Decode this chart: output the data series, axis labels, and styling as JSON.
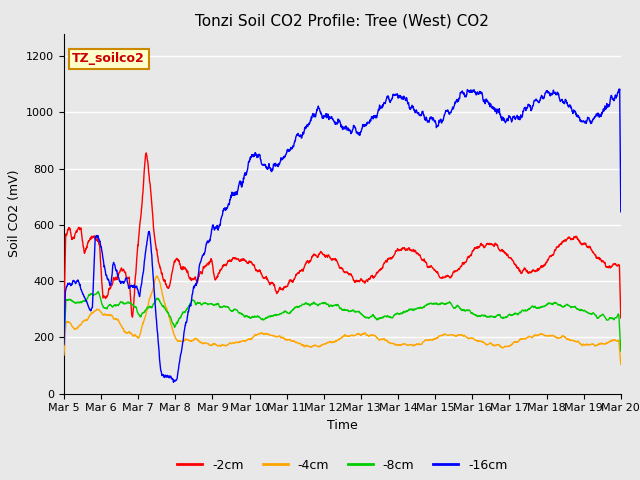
{
  "title": "Tonzi Soil CO2 Profile: Tree (West) CO2",
  "ylabel": "Soil CO2 (mV)",
  "xlabel": "Time",
  "ylim": [
    0,
    1280
  ],
  "yticks": [
    0,
    200,
    400,
    600,
    800,
    1000,
    1200
  ],
  "x_tick_labels": [
    "Mar 5",
    "Mar 6",
    "Mar 7",
    "Mar 8",
    "Mar 9",
    "Mar 10",
    "Mar 11",
    "Mar 12",
    "Mar 13",
    "Mar 14",
    "Mar 15",
    "Mar 16",
    "Mar 17",
    "Mar 18",
    "Mar 19",
    "Mar 20"
  ],
  "colors": {
    "red": "#FF0000",
    "orange": "#FFA500",
    "green": "#00CC00",
    "blue": "#0000FF"
  },
  "legend_labels": [
    "-2cm",
    "-4cm",
    "-8cm",
    "-16cm"
  ],
  "legend_colors": [
    "#FF0000",
    "#FFA500",
    "#00CC00",
    "#0000FF"
  ],
  "annotation_text": "TZ_soilco2",
  "annotation_color": "#CC0000",
  "annotation_bg": "#FFFFCC",
  "annotation_border": "#CC8800",
  "bg_color": "#E8E8E8",
  "grid_color": "#FFFFFF",
  "title_fontsize": 11,
  "axis_label_fontsize": 9,
  "tick_fontsize": 8
}
